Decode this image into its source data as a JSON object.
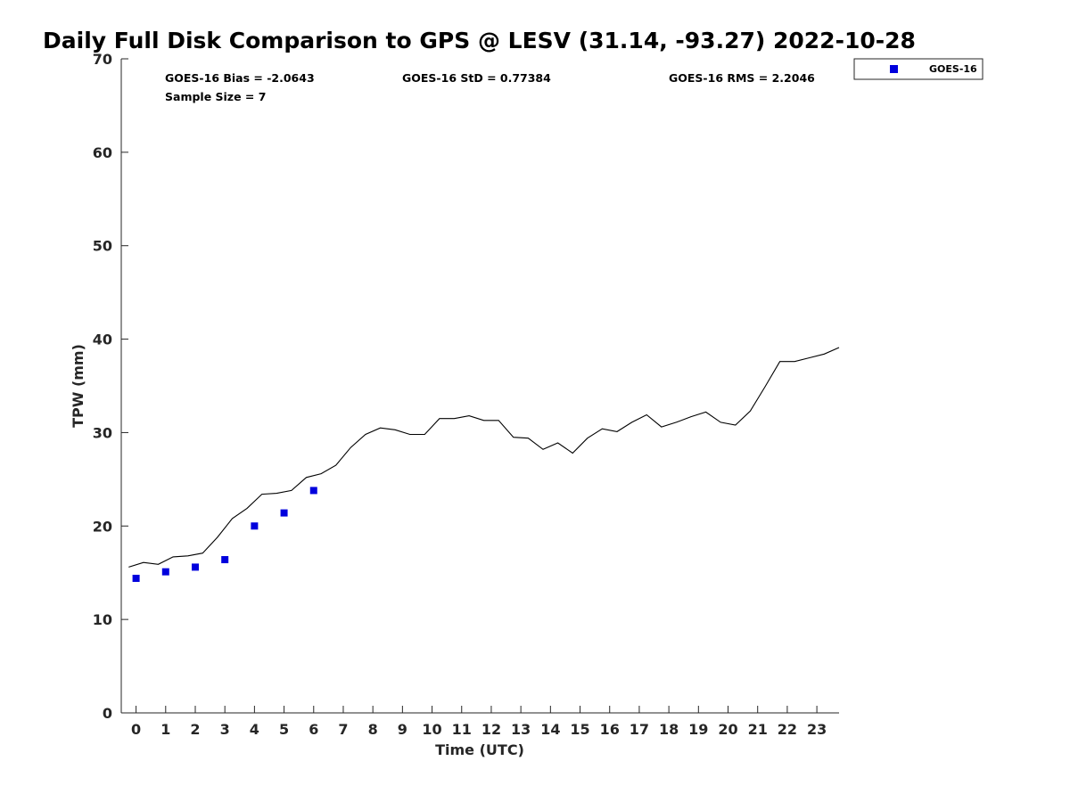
{
  "chart_data": {
    "type": "line",
    "title": "Daily Full Disk Comparison to GPS @ LESV (31.14, -93.27) 2022-10-28",
    "xlabel": "Time (UTC)",
    "ylabel": "TPW (mm)",
    "xlim": [
      -0.5,
      23.75
    ],
    "ylim": [
      0,
      70
    ],
    "x_ticks": [
      0,
      1,
      2,
      3,
      4,
      5,
      6,
      7,
      8,
      9,
      10,
      11,
      12,
      13,
      14,
      15,
      16,
      17,
      18,
      19,
      20,
      21,
      22,
      23
    ],
    "y_ticks": [
      0,
      10,
      20,
      30,
      40,
      50,
      60,
      70
    ],
    "grid": false,
    "legend_position": "top-right, outside plot",
    "stats": {
      "bias": "GOES-16 Bias = -2.0643",
      "std": "GOES-16 StD = 0.77384",
      "rms": "GOES-16 RMS = 2.2046",
      "sample_size": "Sample Size = 7"
    },
    "series": [
      {
        "style": "line",
        "color": "#000000",
        "x": [
          -0.25,
          0.25,
          0.75,
          1.25,
          1.75,
          2.25,
          2.75,
          3.25,
          3.75,
          4.25,
          4.75,
          5.25,
          5.75,
          6.25,
          6.75,
          7.25,
          7.75,
          8.25,
          8.75,
          9.25,
          9.75,
          10.25,
          10.75,
          11.25,
          11.75,
          12.25,
          12.75,
          13.25,
          13.75,
          14.25,
          14.75,
          15.25,
          15.75,
          16.25,
          16.75,
          17.25,
          17.75,
          18.25,
          18.75,
          19.25,
          19.75,
          20.25,
          20.75,
          21.25,
          21.75,
          22.25,
          22.75,
          23.25,
          23.75
        ],
        "values": [
          15.6,
          16.1,
          15.9,
          16.7,
          16.8,
          17.1,
          18.8,
          20.8,
          21.9,
          23.4,
          23.5,
          23.8,
          25.2,
          25.6,
          26.5,
          28.4,
          29.8,
          30.5,
          30.3,
          29.8,
          29.8,
          31.5,
          31.5,
          31.8,
          31.3,
          31.3,
          29.5,
          29.4,
          28.2,
          28.9,
          27.8,
          29.4,
          30.4,
          30.1,
          31.1,
          31.9,
          30.6,
          31.1,
          31.7,
          32.2,
          31.1,
          30.8,
          32.3,
          34.9,
          37.6,
          37.6,
          38.0,
          38.4,
          39.1
        ]
      },
      {
        "name": "GOES-16",
        "style": "scatter",
        "marker": "square",
        "color": "#0000dd",
        "x": [
          0,
          1,
          2,
          3,
          4,
          5,
          6
        ],
        "values": [
          14.4,
          15.1,
          15.6,
          16.4,
          20.0,
          21.4,
          23.8
        ]
      }
    ]
  }
}
